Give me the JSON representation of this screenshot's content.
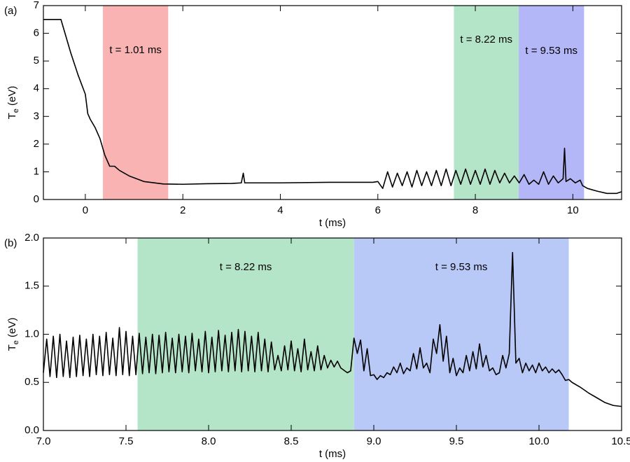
{
  "chart_data": [
    {
      "type": "line",
      "panel": "(a)",
      "xlabel": "t (ms)",
      "ylabel": {
        "base": "T",
        "sub": "e",
        "unit": "(eV)"
      },
      "xlim": [
        -0.86,
        11
      ],
      "ylim": [
        0,
        7
      ],
      "xticks": [
        0,
        2,
        4,
        6,
        8,
        10
      ],
      "yticks": [
        0,
        1,
        2,
        3,
        4,
        5,
        6,
        7
      ],
      "regions": [
        {
          "label": "t = 1.01 ms",
          "start": 0.36,
          "end": 1.7,
          "color": "#f9b3b3"
        },
        {
          "label": "t = 8.22 ms",
          "start": 7.56,
          "end": 8.89,
          "color": "#b5e5c9"
        },
        {
          "label": "t = 9.53 ms",
          "start": 8.89,
          "end": 10.23,
          "color": "#b4b7f7"
        }
      ],
      "color": "#000000",
      "x": [
        -0.86,
        -0.5,
        -0.45,
        -0.3,
        -0.15,
        0,
        0.05,
        0.1,
        0.2,
        0.3,
        0.4,
        0.5,
        0.6,
        0.7,
        0.9,
        1.2,
        1.6,
        2,
        2.5,
        3,
        3.2,
        3.24,
        3.27,
        3.35,
        4,
        5,
        5.9,
        6.0,
        6.1,
        6.2,
        6.3,
        6.4,
        6.5,
        6.6,
        6.7,
        6.8,
        6.9,
        7.0,
        7.1,
        7.2,
        7.3,
        7.4,
        7.5,
        7.6,
        7.7,
        7.8,
        7.9,
        8.0,
        8.1,
        8.2,
        8.3,
        8.4,
        8.5,
        8.6,
        8.7,
        8.8,
        8.9,
        9.0,
        9.1,
        9.2,
        9.3,
        9.4,
        9.5,
        9.6,
        9.7,
        9.8,
        9.83,
        9.86,
        9.95,
        10.05,
        10.15,
        10.2,
        10.3,
        10.5,
        10.7,
        10.9,
        11
      ],
      "values": [
        6.5,
        6.5,
        6.2,
        5.3,
        4.5,
        3.8,
        3.1,
        2.9,
        2.6,
        2.2,
        1.6,
        1.2,
        1.2,
        1.05,
        0.85,
        0.65,
        0.56,
        0.55,
        0.57,
        0.58,
        0.6,
        0.95,
        0.6,
        0.6,
        0.6,
        0.62,
        0.62,
        0.65,
        0.4,
        1.0,
        0.45,
        0.95,
        0.5,
        1.0,
        0.45,
        1.05,
        0.5,
        1.0,
        0.5,
        1.05,
        0.5,
        1.1,
        0.5,
        1.05,
        0.55,
        1.1,
        0.55,
        1.05,
        0.55,
        1.1,
        0.55,
        1.05,
        0.6,
        0.95,
        0.6,
        0.85,
        0.6,
        0.9,
        0.55,
        0.7,
        0.55,
        1.0,
        0.55,
        0.85,
        0.6,
        0.75,
        1.85,
        0.65,
        0.75,
        0.6,
        0.7,
        0.5,
        0.4,
        0.3,
        0.22,
        0.22,
        0.28
      ]
    },
    {
      "type": "line",
      "panel": "(b)",
      "xlabel": "t (ms)",
      "ylabel": {
        "base": "T",
        "sub": "e",
        "unit": "(eV)"
      },
      "xlim": [
        7.0,
        10.5
      ],
      "ylim": [
        0,
        2
      ],
      "xticks": [
        {
          "value": 7,
          "label": "7.0"
        },
        7.5,
        {
          "value": 8,
          "label": "8.0"
        },
        8.5,
        {
          "value": 9,
          "label": "9.0"
        },
        9.5,
        {
          "value": 10,
          "label": "10.0"
        },
        10.5
      ],
      "yticks": [
        {
          "value": 0,
          "label": "0.0"
        },
        0.5,
        {
          "value": 1,
          "label": "1.0"
        },
        1.5,
        {
          "value": 2,
          "label": "2.0"
        }
      ],
      "regions": [
        {
          "label": "t = 8.22 ms",
          "start": 7.57,
          "end": 8.88,
          "color": "#b5e5c9"
        },
        {
          "label": "t = 9.53 ms",
          "start": 8.88,
          "end": 10.18,
          "color": "#b8c9f8"
        }
      ],
      "color": "#000000",
      "x": [
        7.0,
        7.02,
        7.04,
        7.06,
        7.08,
        7.1,
        7.12,
        7.14,
        7.16,
        7.18,
        7.2,
        7.22,
        7.24,
        7.26,
        7.28,
        7.3,
        7.32,
        7.34,
        7.36,
        7.38,
        7.4,
        7.42,
        7.44,
        7.46,
        7.48,
        7.5,
        7.52,
        7.54,
        7.56,
        7.58,
        7.6,
        7.62,
        7.64,
        7.66,
        7.68,
        7.7,
        7.72,
        7.74,
        7.76,
        7.78,
        7.8,
        7.82,
        7.84,
        7.86,
        7.88,
        7.9,
        7.92,
        7.94,
        7.96,
        7.98,
        8.0,
        8.02,
        8.04,
        8.06,
        8.08,
        8.1,
        8.12,
        8.14,
        8.16,
        8.18,
        8.2,
        8.22,
        8.24,
        8.26,
        8.28,
        8.3,
        8.32,
        8.34,
        8.36,
        8.38,
        8.4,
        8.42,
        8.44,
        8.46,
        8.48,
        8.5,
        8.52,
        8.54,
        8.56,
        8.58,
        8.6,
        8.62,
        8.64,
        8.66,
        8.68,
        8.7,
        8.72,
        8.74,
        8.76,
        8.78,
        8.8,
        8.84,
        8.86,
        8.88,
        8.9,
        8.92,
        8.94,
        8.96,
        8.98,
        9.0,
        9.02,
        9.04,
        9.06,
        9.08,
        9.1,
        9.12,
        9.14,
        9.16,
        9.18,
        9.2,
        9.22,
        9.24,
        9.26,
        9.28,
        9.3,
        9.32,
        9.34,
        9.36,
        9.38,
        9.4,
        9.42,
        9.44,
        9.46,
        9.48,
        9.5,
        9.52,
        9.54,
        9.56,
        9.58,
        9.6,
        9.62,
        9.64,
        9.66,
        9.68,
        9.7,
        9.72,
        9.74,
        9.76,
        9.78,
        9.8,
        9.82,
        9.84,
        9.86,
        9.88,
        9.9,
        9.92,
        9.94,
        9.96,
        9.98,
        10.0,
        10.02,
        10.04,
        10.06,
        10.08,
        10.1,
        10.12,
        10.14,
        10.16,
        10.18,
        10.2,
        10.25,
        10.3,
        10.35,
        10.4,
        10.45,
        10.5
      ],
      "values": [
        0.6,
        0.95,
        0.56,
        0.98,
        0.55,
        1.0,
        0.56,
        0.93,
        0.55,
        0.97,
        0.56,
        0.99,
        0.57,
        0.95,
        0.56,
        1.0,
        0.58,
        0.98,
        0.57,
        1.02,
        0.58,
        0.96,
        0.57,
        1.07,
        0.58,
        1.03,
        0.57,
        0.98,
        0.58,
        1.01,
        0.59,
        0.97,
        0.6,
        1.0,
        0.59,
        0.99,
        0.6,
        1.02,
        0.61,
        0.96,
        0.6,
        1.0,
        0.61,
        0.98,
        0.6,
        1.01,
        0.62,
        0.95,
        0.61,
        1.03,
        0.6,
        0.97,
        0.61,
        1.04,
        0.62,
        0.99,
        0.61,
        1.02,
        0.62,
        1.05,
        0.61,
        1.03,
        0.62,
        0.98,
        0.61,
        1.02,
        0.62,
        0.95,
        0.61,
        0.92,
        0.63,
        0.78,
        0.62,
        0.88,
        0.63,
        0.93,
        0.62,
        0.85,
        0.61,
        0.95,
        0.63,
        0.82,
        0.62,
        0.88,
        0.63,
        0.78,
        0.65,
        0.73,
        0.66,
        0.72,
        0.65,
        0.6,
        0.62,
        0.96,
        0.8,
        0.94,
        0.62,
        0.85,
        0.57,
        0.58,
        0.53,
        0.57,
        0.55,
        0.6,
        0.58,
        0.66,
        0.6,
        0.7,
        0.59,
        0.65,
        0.62,
        0.8,
        0.64,
        0.86,
        0.65,
        0.7,
        0.6,
        0.95,
        0.8,
        1.1,
        0.72,
        0.98,
        0.6,
        0.75,
        0.57,
        0.65,
        0.6,
        0.78,
        0.62,
        0.82,
        0.64,
        0.9,
        0.66,
        0.78,
        0.62,
        0.65,
        0.58,
        0.6,
        0.78,
        0.65,
        0.8,
        1.85,
        0.7,
        0.75,
        0.6,
        0.7,
        0.62,
        0.68,
        0.6,
        0.7,
        0.62,
        0.66,
        0.6,
        0.64,
        0.6,
        0.63,
        0.58,
        0.52,
        0.53,
        0.5,
        0.45,
        0.39,
        0.34,
        0.29,
        0.26,
        0.25
      ]
    }
  ]
}
